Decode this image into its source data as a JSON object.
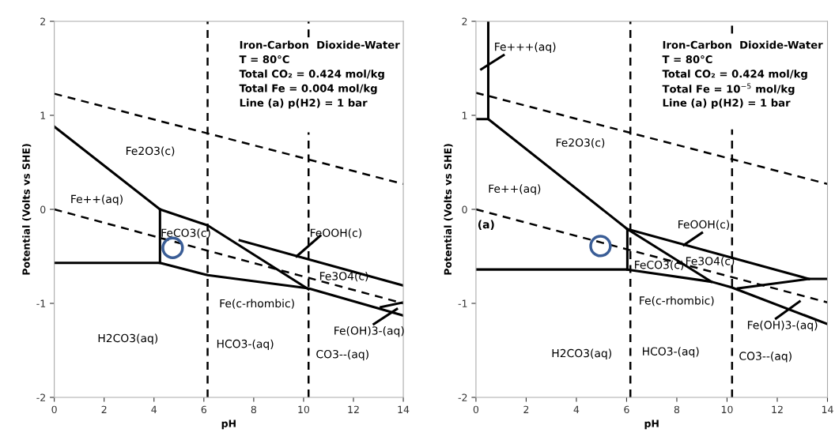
{
  "chart_data": [
    {
      "type": "line",
      "xlabel": "pH",
      "ylabel": "Potential (Volts vs SHE)",
      "xlim": [
        0,
        14
      ],
      "ylim": [
        -2,
        2
      ],
      "xticks": [
        0,
        2,
        4,
        6,
        8,
        10,
        12,
        14
      ],
      "yticks": [
        -2,
        -1,
        0,
        1,
        2
      ],
      "grid": false,
      "line_style": "solid",
      "series": [
        {
          "x": [
            0,
            14
          ],
          "values": [
            1.23,
            0.27
          ],
          "line_style": "dashed",
          "color": "#000000"
        },
        {
          "x": [
            0,
            14
          ],
          "values": [
            0,
            -1.0
          ],
          "line_style": "dashed",
          "color": "#000000"
        },
        {
          "x": [
            6.15,
            6.15
          ],
          "values": [
            -2,
            2
          ],
          "line_style": "dashed",
          "color": "#000000"
        },
        {
          "x": [
            10.2,
            10.2
          ],
          "values": [
            -2,
            0.82
          ],
          "line_style": "dashed",
          "color": "#000000"
        },
        {
          "x": [
            10.2,
            10.2
          ],
          "values": [
            1.83,
            2
          ],
          "line_style": "dashed",
          "color": "#000000"
        },
        {
          "x": [
            0,
            4.24,
            6.15,
            10.2
          ],
          "values": [
            0.88,
            0,
            -0.17,
            -0.85
          ],
          "color": "#000000"
        },
        {
          "x": [
            7.44,
            14
          ],
          "values": [
            -0.33,
            -0.81
          ],
          "color": "#000000"
        },
        {
          "x": [
            4.24,
            4.24
          ],
          "values": [
            -0.57,
            0
          ],
          "color": "#000000"
        },
        {
          "x": [
            0,
            4.24,
            6.15,
            10.2,
            14
          ],
          "values": [
            -0.57,
            -0.57,
            -0.7,
            -0.84,
            -1.13
          ],
          "color": "#000000"
        },
        {
          "x": [
            13.1,
            14
          ],
          "values": [
            -1.04,
            -0.99
          ],
          "color": "#000000"
        },
        {
          "x": [
            9.72,
            10.67
          ],
          "values": [
            -0.5,
            -0.28
          ],
          "color": "#000000"
        },
        {
          "x": [
            13.74,
            12.82
          ],
          "values": [
            -1.06,
            -1.22
          ],
          "color": "#000000"
        },
        {
          "type": "scatter",
          "marker": "circle",
          "x": [
            4.75
          ],
          "values": [
            -0.41
          ],
          "color": "#3a5d96"
        }
      ],
      "annotations": [
        "Iron-Carbon  Dioxide-Water",
        "T = 80°C",
        "Total CO₂ = 0.424 mol/kg",
        "Total Fe = 0.004 mol/kg",
        "Line (a) p(H2) = 1 bar",
        "Fe2O3(c)",
        "Fe++(aq)",
        "FeCO3(c)",
        "FeOOH(c)",
        "Fe3O4(c)",
        "Fe(c-rhombic)",
        "Fe(OH)3-(aq)",
        "H2CO3(aq)",
        "HCO3-(aq)",
        "CO3--(aq)"
      ]
    },
    {
      "type": "line",
      "xlabel": "pH",
      "ylabel": "Potential (Volts vs SHE)",
      "xlim": [
        0,
        14
      ],
      "ylim": [
        -2,
        2
      ],
      "xticks": [
        0,
        2,
        4,
        6,
        8,
        10,
        12,
        14
      ],
      "yticks": [
        -2,
        -1,
        0,
        1,
        2
      ],
      "grid": false,
      "line_style": "solid",
      "series": [
        {
          "x": [
            0,
            14
          ],
          "values": [
            1.24,
            0.27
          ],
          "line_style": "dashed",
          "color": "#000000"
        },
        {
          "x": [
            0,
            14
          ],
          "values": [
            0,
            -0.99
          ],
          "line_style": "dashed",
          "color": "#000000"
        },
        {
          "x": [
            6.15,
            6.15
          ],
          "values": [
            -2,
            2
          ],
          "line_style": "dashed",
          "color": "#000000"
        },
        {
          "x": [
            10.2,
            10.2
          ],
          "values": [
            -2,
            0.85
          ],
          "line_style": "dashed",
          "color": "#000000"
        },
        {
          "x": [
            10.2,
            10.2
          ],
          "values": [
            1.87,
            2
          ],
          "line_style": "dashed",
          "color": "#000000"
        },
        {
          "x": [
            0,
            0.49,
            0.49
          ],
          "values": [
            0.96,
            0.96,
            2
          ],
          "color": "#000000"
        },
        {
          "x": [
            0.49,
            6.03,
            6.03
          ],
          "values": [
            0.96,
            -0.21,
            -0.64
          ],
          "color": "#000000"
        },
        {
          "x": [
            6.03,
            13.26
          ],
          "values": [
            -0.21,
            -0.74
          ],
          "color": "#000000"
        },
        {
          "x": [
            10.43,
            13.26,
            14
          ],
          "values": [
            -0.84,
            -0.74,
            -0.74
          ],
          "color": "#000000"
        },
        {
          "x": [
            6.03,
            9.38
          ],
          "values": [
            -0.21,
            -0.77
          ],
          "color": "#000000"
        },
        {
          "x": [
            0,
            6.03,
            9.38,
            10.18,
            14
          ],
          "values": [
            -0.64,
            -0.64,
            -0.77,
            -0.83,
            -1.22
          ],
          "color": "#000000"
        },
        {
          "x": [
            0.21,
            1.1
          ],
          "values": [
            1.49,
            1.64
          ],
          "color": "#000000"
        },
        {
          "x": [
            9.0,
            8.28
          ],
          "values": [
            -0.25,
            -0.38
          ],
          "color": "#000000"
        },
        {
          "x": [
            12.89,
            11.95
          ],
          "values": [
            -0.98,
            -1.16
          ],
          "color": "#000000"
        },
        {
          "type": "scatter",
          "marker": "circle",
          "x": [
            4.96
          ],
          "values": [
            -0.39
          ],
          "color": "#3a5d96"
        }
      ],
      "annotations": [
        "Iron-Carbon  Dioxide-Water",
        "T = 80°C",
        "Total CO₂ = 0.424 mol/kg",
        "Total Fe = 10$^{−5}$ mol/kg",
        "Line (a) p(H2) = 1 bar",
        "Fe+++(aq)",
        "Fe2O3(c)",
        "Fe++(aq)",
        "(a)",
        "FeOOH(c)",
        "FeCO3(c)",
        "Fe3O4(c)",
        "Fe(c-rhombic)",
        "Fe(OH)3-(aq)",
        "H2CO3(aq)",
        "HCO3-(aq)",
        "CO3--(aq)"
      ]
    }
  ]
}
